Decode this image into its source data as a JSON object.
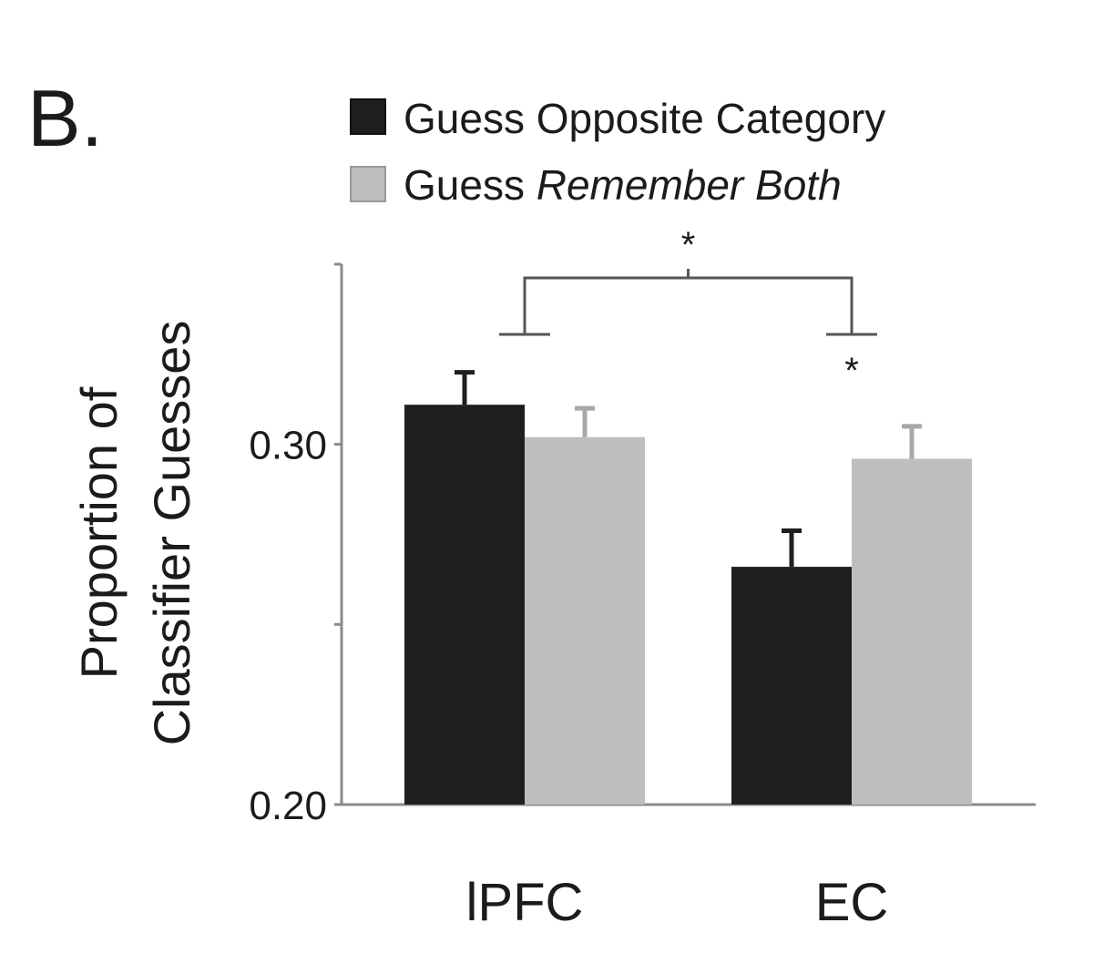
{
  "panel_label": "B.",
  "legend": {
    "items": [
      {
        "prefix": "Guess Opposite Category",
        "italic": "",
        "color": "#1f1f1f",
        "edge": "#111111"
      },
      {
        "prefix": "Guess ",
        "italic": "Remember Both",
        "color": "#bdbebf",
        "edge": "#9a9a9a"
      }
    ]
  },
  "significance": {
    "between_regions_marker": "*",
    "within_ec_marker": "*"
  },
  "chart_data": {
    "type": "bar",
    "title": "",
    "xlabel": "",
    "ylabel": [
      "Proportion of",
      "Classifier Guesses"
    ],
    "categories": [
      "lPFC",
      "EC"
    ],
    "ylim": [
      0.2,
      0.35
    ],
    "yticks": [
      0.2,
      0.25,
      0.3,
      0.35
    ],
    "ytick_labels": [
      "0.20",
      "",
      "0.30",
      ""
    ],
    "grid": false,
    "legend_position": "top",
    "series": [
      {
        "name": "Guess Opposite Category",
        "values": [
          0.311,
          0.266
        ],
        "errors": [
          0.009,
          0.01
        ],
        "color": "#1f1f1f"
      },
      {
        "name": "Guess Remember Both",
        "values": [
          0.302,
          0.296
        ],
        "errors": [
          0.008,
          0.009
        ],
        "color": "#bdbebf"
      }
    ]
  }
}
